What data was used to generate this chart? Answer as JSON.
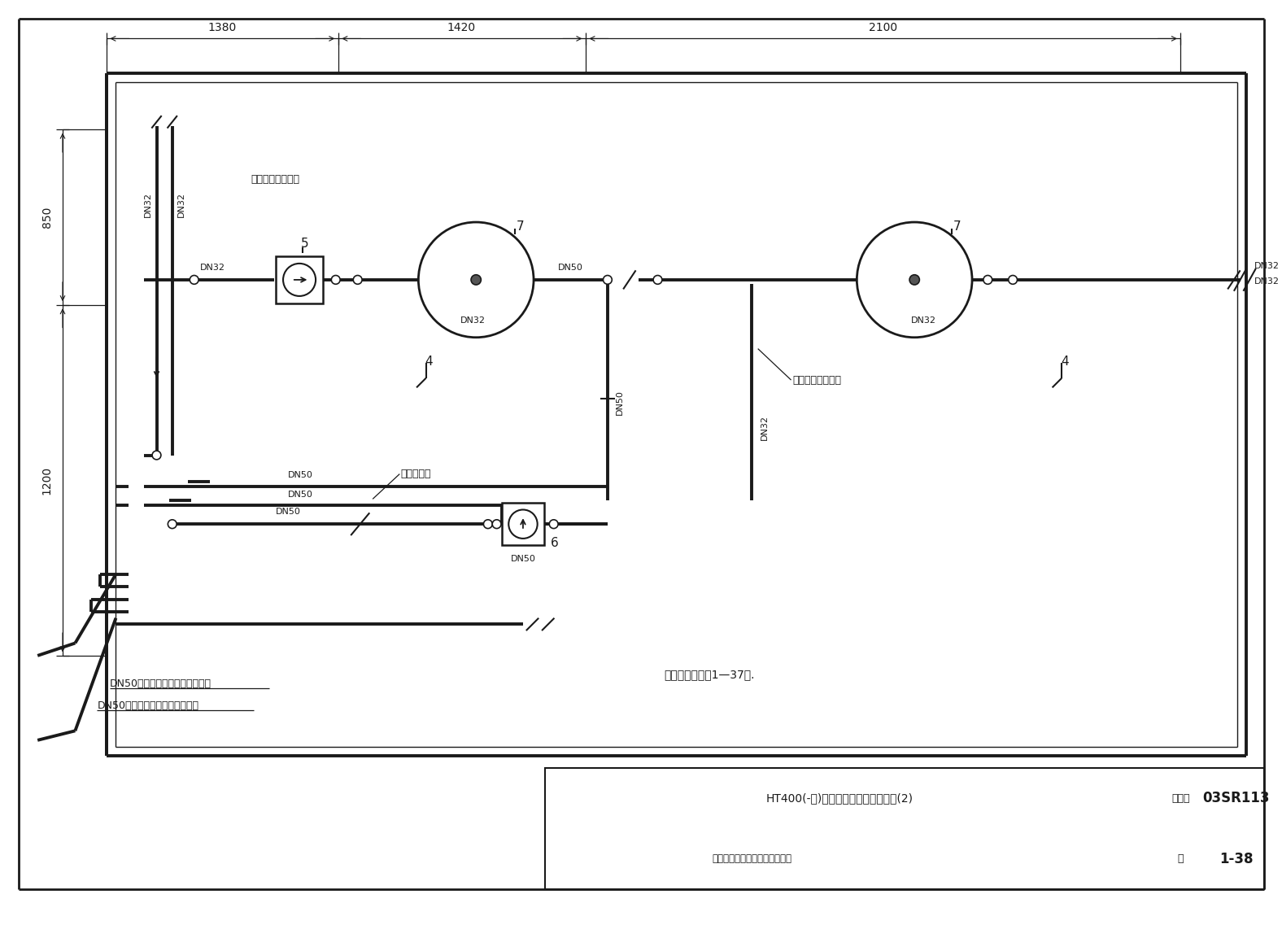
{
  "fig_width": 20.48,
  "fig_height": 14.77,
  "lc": "#1a1a1a",
  "tlw": 2.8,
  "mlw": 1.5,
  "nlw": 1.0,
  "dlw": 0.9,
  "title_text": "HT400(-台)冷热源设备及管道平面图(2)",
  "atlas_label": "图集号",
  "atlas_code": "03SR113",
  "page_label": "页",
  "page_num": "1-38",
  "sign_text": "审核定浅谈校对手稿初设计黄海",
  "note": "注：设备表见第1—37页.",
  "lbl_huishui": "接生活热水回水管",
  "lbl_laishui": "接自来水管",
  "lbl_gongshu": "接生活热水供水管",
  "lbl_dn50_from": "DN50接自生活热水板式换热器换",
  "lbl_dn50_to": "DN50接至生活热水板式换热器换",
  "dim_1380": "1380",
  "dim_1420": "1420",
  "dim_2100": "2100",
  "dim_850": "850",
  "dim_1200": "1200"
}
